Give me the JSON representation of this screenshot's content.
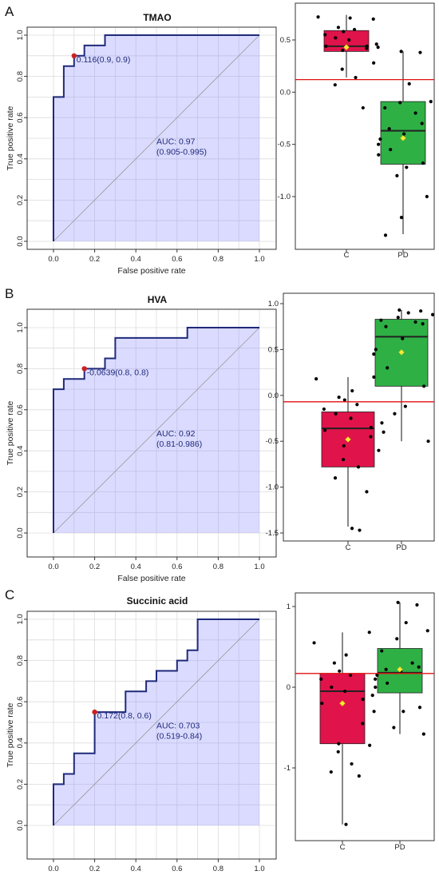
{
  "panels": [
    {
      "letter": "A",
      "roc": {
        "type": "line",
        "title": "TMAO",
        "xlabel": "False positive rate",
        "ylabel": "True positive rate",
        "xlim": [
          0,
          1
        ],
        "ylim": [
          0,
          1
        ],
        "ticks": [
          "0.0",
          "0.2",
          "0.4",
          "0.6",
          "0.8",
          "1.0"
        ],
        "grid": true,
        "curve": {
          "x": [
            0,
            0,
            0.05,
            0.05,
            0.1,
            0.1,
            0.15,
            0.15,
            0.2,
            0.2,
            0.25,
            0.25,
            1
          ],
          "y": [
            0,
            0.7,
            0.7,
            0.85,
            0.85,
            0.9,
            0.9,
            0.95,
            0.95,
            0.95,
            0.95,
            1,
            1
          ]
        },
        "threshold_point": {
          "x": 0.1,
          "y": 0.9,
          "label": "0.116(0.9, 0.9)"
        },
        "auc_label": "AUC: 0.97",
        "ci_label": "(0.905-0.995)"
      },
      "box": {
        "type": "scatter",
        "categories": [
          "C",
          "PD"
        ],
        "yticks": [
          0.5,
          0.0,
          -0.5,
          -1.0
        ],
        "ytick_labels": [
          "0.5",
          "0.0",
          "-0.5",
          "-1.0"
        ],
        "ylim": [
          -1.42,
          0.77
        ],
        "threshold": 0.12,
        "groups": [
          {
            "name": "C",
            "q1": 0.39,
            "median": 0.44,
            "q3": 0.59,
            "whisker_low": 0.14,
            "whisker_high": 0.74,
            "mean": 0.43,
            "points": [
              0.7,
              0.72,
              0.71,
              0.62,
              0.58,
              0.6,
              0.55,
              0.52,
              0.5,
              0.46,
              0.44,
              0.44,
              0.43,
              0.42,
              0.4,
              0.28,
              0.22,
              0.14,
              0.07,
              -0.15
            ]
          },
          {
            "name": "PD",
            "q1": -0.69,
            "median": -0.37,
            "q3": -0.09,
            "whisker_low": -1.36,
            "whisker_high": 0.39,
            "mean": -0.44,
            "points": [
              0.39,
              0.38,
              0.08,
              -0.09,
              -0.1,
              -0.15,
              -0.2,
              -0.3,
              -0.35,
              -0.4,
              -0.45,
              -0.5,
              -0.55,
              -0.6,
              -0.68,
              -0.72,
              -0.8,
              -1.0,
              -1.2,
              -1.37
            ]
          }
        ]
      }
    },
    {
      "letter": "B",
      "roc": {
        "type": "line",
        "title": "HVA",
        "xlabel": "False positive rate",
        "ylabel": "True positive rate",
        "xlim": [
          0,
          1
        ],
        "ylim": [
          0,
          1
        ],
        "ticks": [
          "0.0",
          "0.2",
          "0.4",
          "0.6",
          "0.8",
          "1.0"
        ],
        "grid": true,
        "curve": {
          "x": [
            0,
            0,
            0.05,
            0.05,
            0.15,
            0.15,
            0.25,
            0.25,
            0.3,
            0.3,
            0.65,
            0.65,
            1
          ],
          "y": [
            0,
            0.7,
            0.7,
            0.75,
            0.75,
            0.8,
            0.8,
            0.85,
            0.85,
            0.95,
            0.95,
            1,
            1
          ]
        },
        "threshold_point": {
          "x": 0.15,
          "y": 0.8,
          "label": "-0.0639(0.8, 0.8)"
        },
        "auc_label": "AUC: 0.92",
        "ci_label": "(0.81-0.986)"
      },
      "box": {
        "type": "scatter",
        "categories": [
          "C",
          "PD"
        ],
        "yticks": [
          1.0,
          0.5,
          0.0,
          -0.5,
          -1.0,
          -1.5
        ],
        "ytick_labels": [
          "1.0",
          "0.5",
          "0.0",
          "-0.5",
          "-1.0",
          "-1.5"
        ],
        "ylim": [
          -1.55,
          1.05
        ],
        "threshold": -0.07,
        "groups": [
          {
            "name": "C",
            "q1": -0.78,
            "median": -0.36,
            "q3": -0.18,
            "whisker_low": -1.43,
            "whisker_high": 0.2,
            "mean": -0.48,
            "points": [
              0.2,
              0.18,
              0.05,
              -0.02,
              -0.05,
              -0.1,
              -0.15,
              -0.2,
              -0.25,
              -0.3,
              -0.35,
              -0.38,
              -0.4,
              -0.45,
              -0.55,
              -0.6,
              -0.7,
              -0.78,
              -0.9,
              -1.05,
              -1.45,
              -1.47
            ]
          },
          {
            "name": "PD",
            "q1": 0.1,
            "median": 0.64,
            "q3": 0.83,
            "whisker_low": -0.5,
            "whisker_high": 0.93,
            "mean": 0.47,
            "points": [
              0.93,
              0.92,
              0.9,
              0.88,
              0.85,
              0.82,
              0.8,
              0.78,
              0.75,
              0.62,
              0.5,
              0.45,
              0.3,
              0.2,
              0.1,
              -0.12,
              -0.2,
              -0.5
            ]
          }
        ]
      }
    },
    {
      "letter": "C",
      "roc": {
        "type": "line",
        "title": "Succinic acid",
        "xlabel": "False positive rate",
        "ylabel": "True positive rate",
        "xlim": [
          0,
          1
        ],
        "ylim": [
          0,
          1
        ],
        "ticks": [
          "0.0",
          "0.2",
          "0.4",
          "0.6",
          "0.8",
          "1.0"
        ],
        "grid": true,
        "curve": {
          "x": [
            0,
            0,
            0.05,
            0.05,
            0.1,
            0.1,
            0.2,
            0.2,
            0.35,
            0.35,
            0.45,
            0.45,
            0.5,
            0.5,
            0.6,
            0.6,
            0.65,
            0.65,
            0.7,
            0.7,
            1
          ],
          "y": [
            0,
            0.2,
            0.2,
            0.25,
            0.25,
            0.35,
            0.35,
            0.55,
            0.55,
            0.65,
            0.65,
            0.7,
            0.7,
            0.75,
            0.75,
            0.8,
            0.8,
            0.85,
            0.85,
            1,
            1
          ]
        },
        "threshold_point": {
          "x": 0.2,
          "y": 0.55,
          "label": "0.172(0.8, 0.6)"
        },
        "auc_label": "AUC: 0.703",
        "ci_label": "(0.519-0.84)"
      },
      "box": {
        "type": "scatter",
        "categories": [
          "C",
          "PD"
        ],
        "yticks": [
          1,
          0,
          -1
        ],
        "ytick_labels": [
          "1",
          "0",
          "-1"
        ],
        "ylim": [
          -1.85,
          1.12
        ],
        "threshold": 0.17,
        "groups": [
          {
            "name": "C",
            "q1": -0.7,
            "median": -0.05,
            "q3": 0.17,
            "whisker_low": -1.7,
            "whisker_high": 0.68,
            "mean": -0.2,
            "points": [
              0.68,
              0.55,
              0.4,
              0.3,
              0.2,
              0.15,
              0.1,
              0.0,
              -0.05,
              -0.1,
              -0.15,
              -0.2,
              -0.3,
              -0.45,
              -0.7,
              -0.72,
              -0.8,
              -0.95,
              -1.05,
              -1.1,
              -1.7
            ]
          },
          {
            "name": "PD",
            "q1": -0.07,
            "median": 0.18,
            "q3": 0.48,
            "whisker_low": -0.58,
            "whisker_high": 1.05,
            "mean": 0.22,
            "points": [
              1.05,
              1.02,
              0.8,
              0.7,
              0.6,
              0.45,
              0.3,
              0.25,
              0.22,
              0.2,
              0.15,
              0.1,
              0.05,
              0.0,
              -0.25,
              -0.3,
              -0.5,
              -0.58
            ]
          }
        ]
      }
    }
  ]
}
